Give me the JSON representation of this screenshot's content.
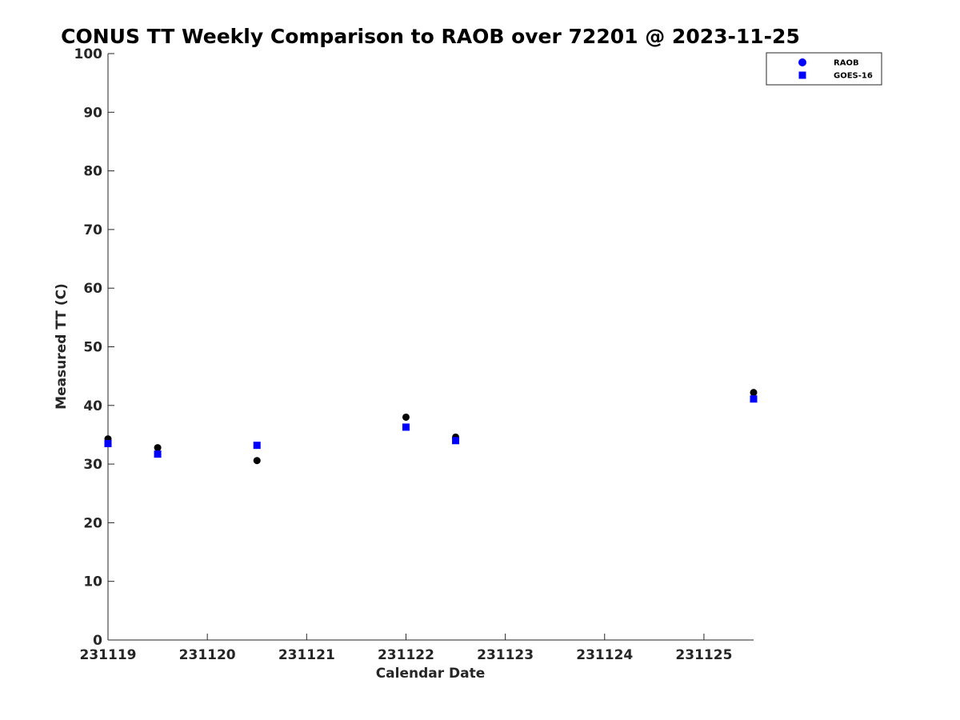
{
  "chart_data": {
    "type": "scatter",
    "title": "CONUS TT Weekly Comparison to RAOB over 72201 @ 2023-11-25",
    "xlabel": "Calendar Date",
    "ylabel": "Measured TT (C)",
    "xlim": [
      "2023-11-19",
      "2023-11-25 12:00"
    ],
    "ylim": [
      0,
      100
    ],
    "x_ticks": [
      "231119",
      "231120",
      "231121",
      "231122",
      "231123",
      "231124",
      "231125"
    ],
    "y_ticks": [
      "0",
      "10",
      "20",
      "30",
      "40",
      "50",
      "60",
      "70",
      "80",
      "90",
      "100"
    ],
    "grid": false,
    "legend_position": "top-right",
    "series": [
      {
        "name": "RAOB",
        "marker": "circle",
        "color": "#000000",
        "legend_color": "#0000ff",
        "x": [
          "2023-11-19 00:00",
          "2023-11-19 12:00",
          "2023-11-20 12:00",
          "2023-11-22 00:00",
          "2023-11-22 12:00",
          "2023-11-25 12:00"
        ],
        "values": [
          34.3,
          32.8,
          30.6,
          38.0,
          34.6,
          42.2
        ]
      },
      {
        "name": "GOES-16",
        "marker": "square",
        "color": "#0000ff",
        "legend_color": "#0000ff",
        "x": [
          "2023-11-19 00:00",
          "2023-11-19 12:00",
          "2023-11-20 12:00",
          "2023-11-22 00:00",
          "2023-11-22 12:00",
          "2023-11-25 12:00"
        ],
        "values": [
          33.5,
          31.7,
          33.2,
          36.3,
          34.0,
          41.1
        ]
      }
    ]
  }
}
